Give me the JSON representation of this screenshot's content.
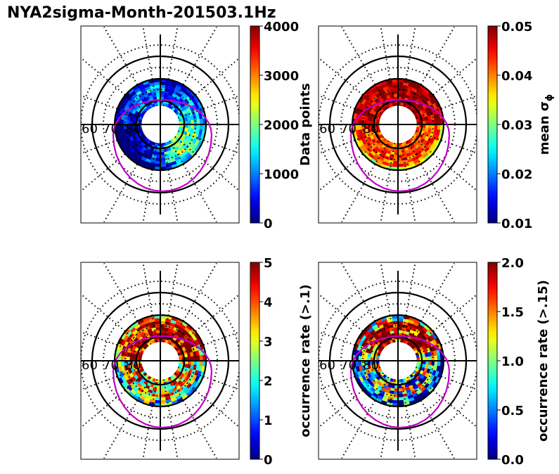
{
  "title": "NYA2sigma-Month-201503.1Hz",
  "chart_data": [
    {
      "type": "heatmap",
      "projection": "polar",
      "lat_labels": [
        "60",
        "70",
        "80"
      ],
      "grid": true,
      "colormap": "jet",
      "colorbar": {
        "label": "Data points",
        "ticks": [
          "0",
          "1000",
          "2000",
          "3000",
          "4000"
        ],
        "range": [
          0,
          4000
        ]
      }
    },
    {
      "type": "heatmap",
      "projection": "polar",
      "lat_labels": [
        "60",
        "70",
        "80"
      ],
      "grid": true,
      "colormap": "jet",
      "colorbar": {
        "label": "mean σ",
        "label_sub": "ϕ",
        "ticks": [
          "0.01",
          "0.02",
          "0.03",
          "0.04",
          "0.05"
        ],
        "range": [
          0.01,
          0.05
        ]
      }
    },
    {
      "type": "heatmap",
      "projection": "polar",
      "lat_labels": [
        "60",
        "70",
        "80"
      ],
      "grid": true,
      "colormap": "jet",
      "colorbar": {
        "label": "occurrence rate (>.1)",
        "ticks": [
          "0",
          "1",
          "2",
          "3",
          "4",
          "5"
        ],
        "range": [
          0,
          5
        ]
      }
    },
    {
      "type": "heatmap",
      "projection": "polar",
      "lat_labels": [
        "60",
        "70",
        "80"
      ],
      "grid": true,
      "colormap": "jet",
      "colorbar": {
        "label": "occurrence rate (>.15)",
        "ticks": [
          "0.0",
          "0.5",
          "1.0",
          "1.5",
          "2.0"
        ],
        "range": [
          0,
          2
        ]
      }
    }
  ],
  "colors": {
    "oval": "#c000c0",
    "grid": "#000000"
  }
}
